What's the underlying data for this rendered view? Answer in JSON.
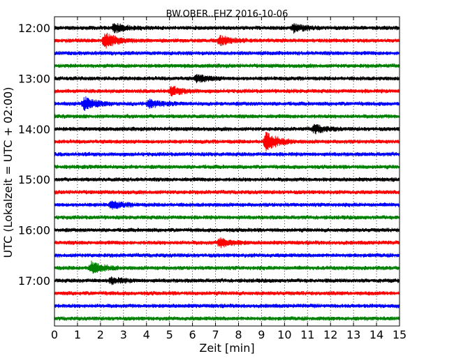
{
  "chart_data": {
    "type": "line",
    "title": "BW.OBER..EHZ 2016-10-06",
    "xlabel": "Zeit  [min]",
    "ylabel": "UTC (Lokalzeit = UTC + 02:00)",
    "xlim": [
      0,
      15
    ],
    "x_ticks": [
      "0",
      "1",
      "2",
      "3",
      "4",
      "5",
      "6",
      "7",
      "8",
      "9",
      "10",
      "11",
      "12",
      "13",
      "14",
      "15"
    ],
    "y_ticks": [
      "12:00",
      "13:00",
      "14:00",
      "15:00",
      "16:00",
      "17:00"
    ],
    "grid": "vertical dotted",
    "series_colors": [
      "#000000",
      "#ff0000",
      "#0000ff",
      "#008000"
    ],
    "traces": [
      {
        "start": "12:00",
        "color": "#000000",
        "events": [
          {
            "t": 2.6,
            "amp": 1.6
          },
          {
            "t": 10.4,
            "amp": 1.4
          }
        ]
      },
      {
        "start": "12:15",
        "color": "#ff0000",
        "events": [
          {
            "t": 2.2,
            "amp": 2.6
          },
          {
            "t": 7.2,
            "amp": 1.5
          }
        ]
      },
      {
        "start": "12:30",
        "color": "#0000ff",
        "events": []
      },
      {
        "start": "12:45",
        "color": "#008000",
        "events": []
      },
      {
        "start": "13:00",
        "color": "#000000",
        "events": [
          {
            "t": 6.2,
            "amp": 1.3
          }
        ]
      },
      {
        "start": "13:15",
        "color": "#ff0000",
        "events": [
          {
            "t": 5.1,
            "amp": 1.4
          }
        ]
      },
      {
        "start": "13:30",
        "color": "#0000ff",
        "events": [
          {
            "t": 1.3,
            "amp": 2.2
          },
          {
            "t": 4.1,
            "amp": 1.3
          }
        ]
      },
      {
        "start": "13:45",
        "color": "#008000",
        "events": []
      },
      {
        "start": "14:00",
        "color": "#000000",
        "events": [
          {
            "t": 11.3,
            "amp": 1.4
          }
        ]
      },
      {
        "start": "14:15",
        "color": "#ff0000",
        "events": [
          {
            "t": 9.2,
            "amp": 3.2
          }
        ]
      },
      {
        "start": "14:30",
        "color": "#0000ff",
        "events": []
      },
      {
        "start": "14:45",
        "color": "#008000",
        "events": []
      },
      {
        "start": "15:00",
        "color": "#000000",
        "events": []
      },
      {
        "start": "15:15",
        "color": "#ff0000",
        "events": []
      },
      {
        "start": "15:30",
        "color": "#0000ff",
        "events": [
          {
            "t": 2.5,
            "amp": 1.2
          }
        ]
      },
      {
        "start": "15:45",
        "color": "#008000",
        "events": []
      },
      {
        "start": "16:00",
        "color": "#000000",
        "events": []
      },
      {
        "start": "16:15",
        "color": "#ff0000",
        "events": [
          {
            "t": 7.2,
            "amp": 1.6
          }
        ]
      },
      {
        "start": "16:30",
        "color": "#0000ff",
        "events": []
      },
      {
        "start": "16:45",
        "color": "#008000",
        "events": [
          {
            "t": 1.6,
            "amp": 2.0
          }
        ]
      },
      {
        "start": "17:00",
        "color": "#000000",
        "events": [
          {
            "t": 2.5,
            "amp": 1.0
          }
        ]
      },
      {
        "start": "17:15",
        "color": "#ff0000",
        "events": []
      },
      {
        "start": "17:30",
        "color": "#0000ff",
        "events": []
      },
      {
        "start": "17:45",
        "color": "#008000",
        "events": []
      }
    ]
  }
}
